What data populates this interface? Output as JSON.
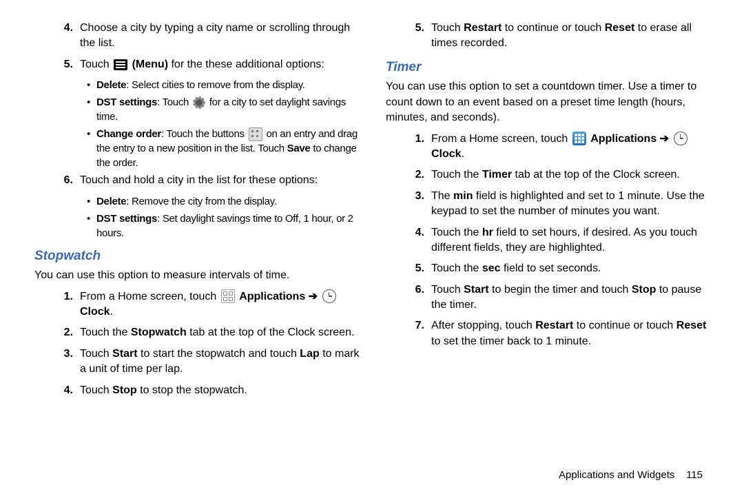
{
  "leftCol": {
    "items": [
      {
        "num": "4.",
        "html": "Choose a city by typing a city name or scrolling through the list."
      },
      {
        "num": "5.",
        "html": "Touch <span class='icon icon-menu' data-name='menu-icon' data-interactable='false'></span> <b>(Menu)</b> for the these additional options:",
        "bullets": [
          "<b>Delete</b>: Select cities to remove from the display.",
          "<b>DST settings</b>: Touch <span class='icon icon-gear' data-name='gear-icon' data-interactable='false'></span> for a city to set daylight savings time.",
          "<b>Change order</b>: Touch the buttons <span class='icon icon-dots' data-name='drag-handle-icon' data-interactable='false'></span> on an entry and drag the entry to a new position in the list. Touch <b>Save</b> to change the order."
        ]
      },
      {
        "num": "6.",
        "html": "Touch and hold a city in the list for these options:",
        "bullets": [
          "<b>Delete</b>: Remove the city from the display.",
          "<b>DST settings</b>: Set daylight savings time to Off, 1 hour, or 2 hours."
        ]
      }
    ],
    "heading": "Stopwatch",
    "intro": "You can use this option to measure intervals of time.",
    "steps": [
      {
        "num": "1.",
        "html": "From a Home screen, touch <span class='icon icon-apps-sm' data-name='apps-grid-icon' data-interactable='false'></span> <b>Applications</b> <span class='arrow'>➔</span> <span class='icon icon-clock' data-name='clock-icon' data-interactable='false'></span> <b>Clock</b>."
      },
      {
        "num": "2.",
        "html": "Touch the <b>Stopwatch</b> tab at the top of the Clock screen."
      },
      {
        "num": "3.",
        "html": "Touch <b>Start</b> to start the stopwatch and touch <b>Lap</b> to mark a unit of time per lap."
      },
      {
        "num": "4.",
        "html": "Touch <b>Stop</b> to stop the stopwatch."
      }
    ]
  },
  "rightCol": {
    "continueSteps": [
      {
        "num": "5.",
        "html": "Touch <b>Restart</b> to continue or touch <b>Reset</b> to erase all times recorded."
      }
    ],
    "heading": "Timer",
    "intro": "You can use this option to set a countdown timer. Use a timer to count down to an event based on a preset time length (hours, minutes, and seconds).",
    "steps": [
      {
        "num": "1.",
        "html": "From a Home screen, touch <span class='icon icon-apps' data-name='apps-icon' data-interactable='false'></span> <b>Applications</b> <span class='arrow'>➔</span> <span class='icon icon-clock' data-name='clock-icon' data-interactable='false'></span> <b>Clock</b>."
      },
      {
        "num": "2.",
        "html": "Touch the <b>Timer</b> tab at the top of the Clock screen."
      },
      {
        "num": "3.",
        "html": "The <b>min</b> field is highlighted and set to 1 minute. Use the keypad to set the number of minutes you want."
      },
      {
        "num": "4.",
        "html": "Touch the <b>hr</b> field to set hours, if desired. As you touch different fields, they are highlighted."
      },
      {
        "num": "5.",
        "html": "Touch the <b>sec</b> field to set seconds."
      },
      {
        "num": "6.",
        "html": "Touch <b>Start</b> to begin the timer and touch <b>Stop</b> to pause the timer."
      },
      {
        "num": "7.",
        "html": "After stopping, touch <b>Restart</b> to continue or touch <b>Reset</b> to set the timer back to 1 minute."
      }
    ]
  },
  "footer": {
    "section": "Applications and Widgets",
    "page": "115"
  }
}
